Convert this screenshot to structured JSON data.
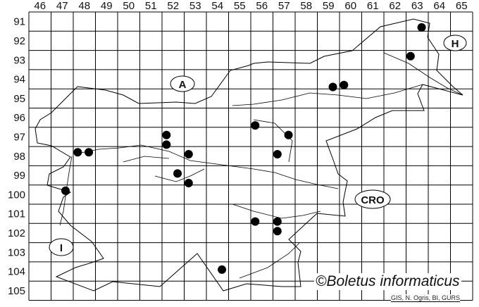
{
  "map": {
    "columns": [
      "46",
      "47",
      "48",
      "49",
      "50",
      "51",
      "52",
      "53",
      "54",
      "55",
      "56",
      "57",
      "58",
      "59",
      "60",
      "61",
      "62",
      "63",
      "64",
      "65"
    ],
    "rows": [
      "91",
      "92",
      "93",
      "94",
      "95",
      "96",
      "97",
      "98",
      "99",
      "100",
      "101",
      "102",
      "103",
      "104",
      "105"
    ],
    "country_labels": {
      "austria": "A",
      "hungary": "H",
      "croatia": "CRO",
      "italy": "I"
    },
    "records": [
      {
        "x": 63.7,
        "y": 91.8
      },
      {
        "x": 63.2,
        "y": 93.3
      },
      {
        "x": 59.7,
        "y": 94.9
      },
      {
        "x": 60.2,
        "y": 94.8
      },
      {
        "x": 56.2,
        "y": 96.9
      },
      {
        "x": 57.7,
        "y": 97.4
      },
      {
        "x": 52.2,
        "y": 97.4
      },
      {
        "x": 52.2,
        "y": 97.9
      },
      {
        "x": 53.2,
        "y": 98.4
      },
      {
        "x": 57.2,
        "y": 98.4
      },
      {
        "x": 48.2,
        "y": 98.3
      },
      {
        "x": 48.7,
        "y": 98.3
      },
      {
        "x": 52.7,
        "y": 99.4
      },
      {
        "x": 53.2,
        "y": 99.9
      },
      {
        "x": 47.65,
        "y": 100.3
      },
      {
        "x": 56.2,
        "y": 101.9
      },
      {
        "x": 57.2,
        "y": 101.9
      },
      {
        "x": 57.2,
        "y": 102.4
      },
      {
        "x": 54.7,
        "y": 104.4
      }
    ],
    "dot_color": "#000000",
    "line_color": "#000000"
  },
  "credit": {
    "title": "©Boletus informaticus",
    "source": "GIS, N. Ogris, BI, GURS"
  }
}
